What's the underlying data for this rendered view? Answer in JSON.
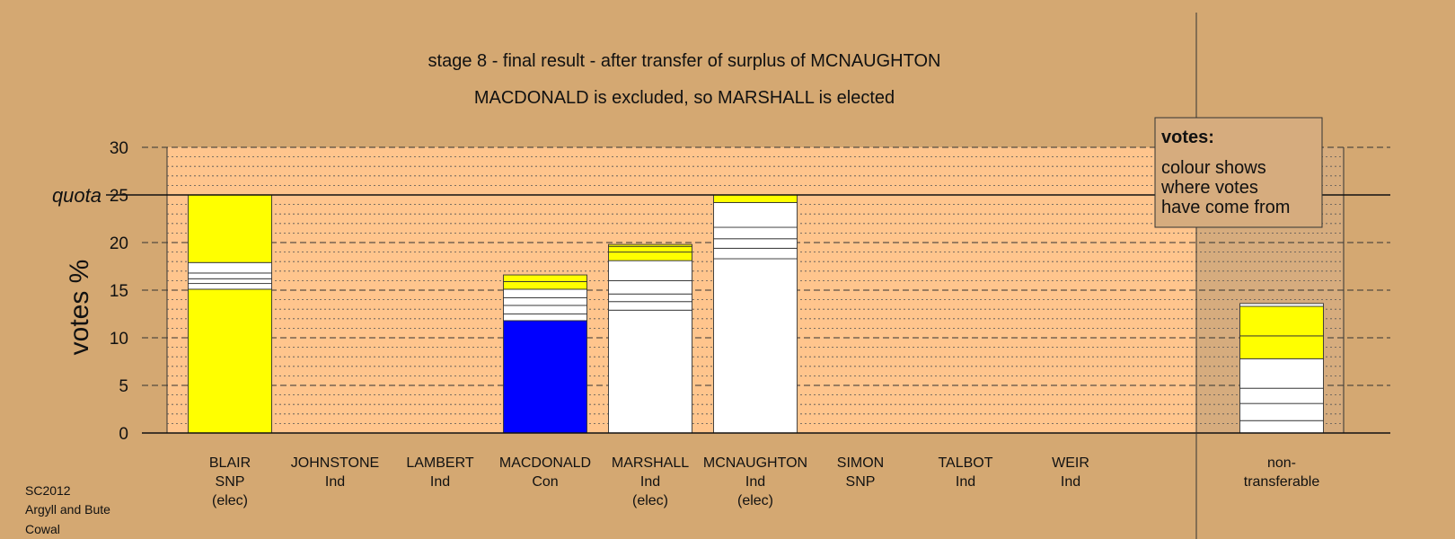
{
  "chart_data": {
    "type": "bar",
    "stacked": true,
    "title": "stage 8 - final result - after transfer of surplus of MCNAUGHTON",
    "subtitle": "MACDONALD is excluded, so MARSHALL is elected",
    "ylabel": "votes %",
    "ylim": [
      0,
      30
    ],
    "yticks": [
      "0",
      "5",
      "10",
      "15",
      "20",
      "25",
      "30"
    ],
    "quota": {
      "label": "quota",
      "value": 25
    },
    "grid": true,
    "categories": [
      {
        "lines": [
          "BLAIR",
          "SNP",
          "(elec)"
        ]
      },
      {
        "lines": [
          "JOHNSTONE",
          "Ind"
        ]
      },
      {
        "lines": [
          "LAMBERT",
          "Ind"
        ]
      },
      {
        "lines": [
          "MACDONALD",
          "Con"
        ]
      },
      {
        "lines": [
          "MARSHALL",
          "Ind",
          "(elec)"
        ]
      },
      {
        "lines": [
          "MCNAUGHTON",
          "Ind",
          "(elec)"
        ]
      },
      {
        "lines": [
          "SIMON",
          "SNP"
        ]
      },
      {
        "lines": [
          "TALBOT",
          "Ind"
        ]
      },
      {
        "lines": [
          "WEIR",
          "Ind"
        ]
      },
      {
        "lines": [
          "non-",
          "transferable"
        ]
      }
    ],
    "bars": [
      {
        "segments": [
          {
            "value": 15.1,
            "color": "#FFFF00"
          },
          {
            "value": 0.6,
            "color": "#FFFFFF"
          },
          {
            "value": 0.5,
            "color": "#FFFFFF"
          },
          {
            "value": 0.6,
            "color": "#FFFFFF"
          },
          {
            "value": 1.1,
            "color": "#FFFFFF"
          },
          {
            "value": 7.1,
            "color": "#FFFF00"
          }
        ]
      },
      {
        "segments": []
      },
      {
        "segments": []
      },
      {
        "segments": [
          {
            "value": 11.8,
            "color": "#0000FF"
          },
          {
            "value": 0.7,
            "color": "#FFFFFF"
          },
          {
            "value": 0.9,
            "color": "#FFFFFF"
          },
          {
            "value": 0.8,
            "color": "#FFFFFF"
          },
          {
            "value": 0.9,
            "color": "#FFFFFF"
          },
          {
            "value": 0.8,
            "color": "#FFFF00"
          },
          {
            "value": 0.7,
            "color": "#FFFF00"
          }
        ]
      },
      {
        "segments": [
          {
            "value": 12.9,
            "color": "#FFFFFF"
          },
          {
            "value": 0.9,
            "color": "#FFFFFF"
          },
          {
            "value": 0.8,
            "color": "#FFFFFF"
          },
          {
            "value": 1.4,
            "color": "#FFFFFF"
          },
          {
            "value": 2.1,
            "color": "#FFFFFF"
          },
          {
            "value": 0.9,
            "color": "#FFFF00"
          },
          {
            "value": 0.6,
            "color": "#FFFF00"
          },
          {
            "value": 0.2,
            "color": "#FFFF00"
          }
        ]
      },
      {
        "segments": [
          {
            "value": 18.3,
            "color": "#FFFFFF"
          },
          {
            "value": 1.1,
            "color": "#FFFFFF"
          },
          {
            "value": 1.0,
            "color": "#FFFFFF"
          },
          {
            "value": 1.2,
            "color": "#FFFFFF"
          },
          {
            "value": 2.6,
            "color": "#FFFFFF"
          },
          {
            "value": 0.8,
            "color": "#FFFF00"
          }
        ]
      },
      {
        "segments": []
      },
      {
        "segments": []
      },
      {
        "segments": []
      },
      {
        "segments": [
          {
            "value": 1.3,
            "color": "#FFFFFF"
          },
          {
            "value": 1.8,
            "color": "#FFFFFF"
          },
          {
            "value": 1.6,
            "color": "#FFFFFF"
          },
          {
            "value": 3.1,
            "color": "#FFFFFF"
          },
          {
            "value": 2.4,
            "color": "#FFFF00"
          },
          {
            "value": 3.1,
            "color": "#FFFF00"
          },
          {
            "value": 0.3,
            "color": "#FFFFFF"
          }
        ]
      }
    ],
    "legend": {
      "title": "votes:",
      "lines": [
        "colour shows",
        "where votes",
        "have come from"
      ],
      "placement": "top-right"
    }
  },
  "footer": [
    "SC2012",
    "Argyll and Bute",
    "Cowal"
  ],
  "colors": {
    "background": "#D4A872",
    "plot_background": "#FFC58D",
    "nontransferable_background": "#D6AC7E"
  }
}
